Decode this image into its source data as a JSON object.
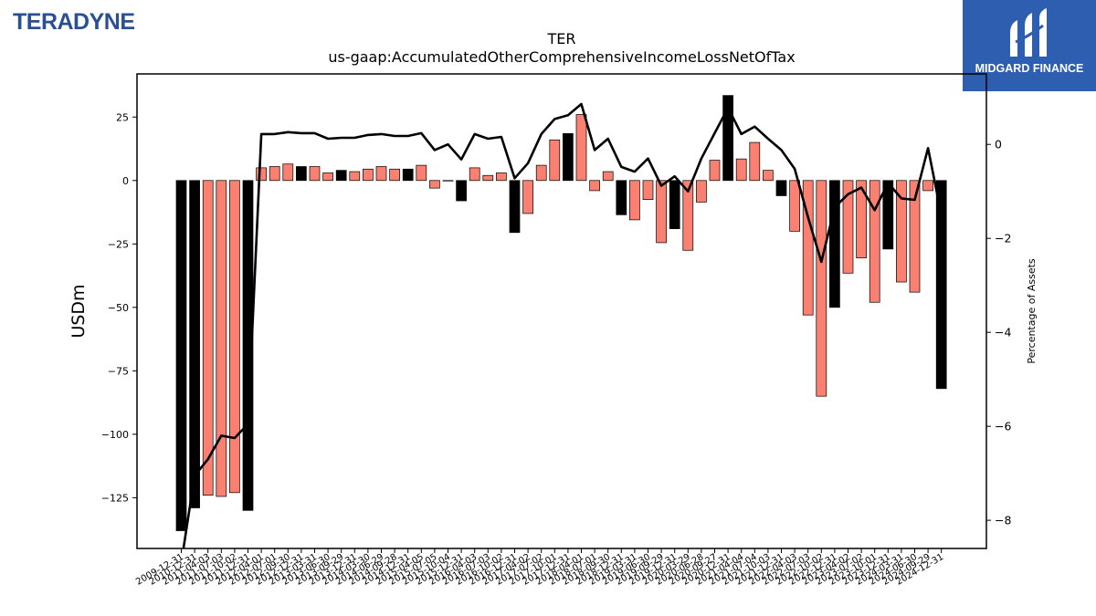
{
  "logo_left": {
    "text": "TERADYNE"
  },
  "logo_right": {
    "text": "MIDGARD FINANCE"
  },
  "chart_data": {
    "type": "bar",
    "title": "TER",
    "subtitle": "us-gaap:AccumulatedOtherComprehensiveIncomeLossNetOfTax",
    "ylabel": "USDm",
    "y2label": "Percentage of Assets",
    "ylim": [
      -145,
      42
    ],
    "y2lim": [
      -8.6,
      1.5
    ],
    "yticks": [
      25,
      0,
      -25,
      -50,
      -75,
      -100,
      -125
    ],
    "y2ticks": [
      0,
      -2,
      -4,
      -6,
      -8
    ],
    "categories": [
      "2009-12-31",
      "2010-12-31",
      "2011-04-03",
      "2011-07-03",
      "2011-10-02",
      "2011-12-31",
      "2012-04-01",
      "2012-07-01",
      "2012-09-30",
      "2012-12-31",
      "2013-03-31",
      "2013-06-30",
      "2013-09-29",
      "2013-12-31",
      "2014-03-30",
      "2014-06-29",
      "2014-09-28",
      "2014-12-31",
      "2015-04-05",
      "2015-07-05",
      "2015-10-04",
      "2015-12-31",
      "2016-04-03",
      "2016-07-03",
      "2016-10-02",
      "2016-12-31",
      "2017-04-02",
      "2017-07-02",
      "2017-10-01",
      "2017-12-31",
      "2018-04-01",
      "2018-07-01",
      "2018-09-30",
      "2018-12-31",
      "2019-03-31",
      "2019-06-30",
      "2019-09-29",
      "2019-12-31",
      "2020-03-29",
      "2020-06-28",
      "2020-09-27",
      "2020-12-31",
      "2021-04-04",
      "2021-07-04",
      "2021-10-03",
      "2021-12-31",
      "2022-04-03",
      "2022-07-03",
      "2022-10-02",
      "2022-12-31",
      "2023-04-02",
      "2023-07-02",
      "2023-10-01",
      "2023-12-31",
      "2024-03-31",
      "2024-06-30",
      "2024-09-29",
      "2024-12-31"
    ],
    "values": [
      -138,
      -129,
      -124,
      -124.5,
      -123,
      -130,
      5,
      5.5,
      6.5,
      5.5,
      5.5,
      3,
      4,
      3.5,
      4.5,
      5.5,
      4.5,
      4.5,
      6,
      -3,
      0,
      -8,
      5,
      2,
      3,
      -20.5,
      -13,
      6,
      16,
      18.5,
      26,
      -4,
      3.5,
      -13.5,
      -15.5,
      -7.5,
      -24.5,
      -19,
      -27.5,
      -8.5,
      8,
      33.5,
      8.5,
      15,
      4,
      -6,
      -20,
      -53,
      -85,
      -50,
      -36.5,
      -30.5,
      -48,
      -27,
      -40,
      -44,
      -4,
      -82
    ],
    "highlight": [
      true,
      true,
      false,
      false,
      false,
      true,
      false,
      false,
      false,
      true,
      false,
      false,
      true,
      false,
      false,
      false,
      false,
      true,
      false,
      false,
      false,
      true,
      false,
      false,
      false,
      true,
      false,
      false,
      false,
      true,
      false,
      false,
      false,
      true,
      false,
      false,
      false,
      true,
      false,
      false,
      false,
      true,
      false,
      false,
      false,
      true,
      false,
      false,
      false,
      true,
      false,
      false,
      false,
      true,
      false,
      false,
      false,
      true
    ],
    "pct_assets": [
      -8.9,
      -7.05,
      -6.7,
      -6.2,
      -6.25,
      -5.95,
      0.22,
      0.22,
      0.26,
      0.24,
      0.24,
      0.12,
      0.14,
      0.14,
      0.2,
      0.22,
      0.18,
      0.18,
      0.24,
      -0.12,
      0.0,
      -0.32,
      0.22,
      0.12,
      0.16,
      -0.72,
      -0.4,
      0.22,
      0.54,
      0.62,
      0.86,
      -0.12,
      0.12,
      -0.48,
      -0.58,
      -0.3,
      -0.88,
      -0.68,
      -1.0,
      -0.3,
      0.24,
      0.78,
      0.22,
      0.38,
      0.12,
      -0.12,
      -0.52,
      -1.55,
      -2.5,
      -1.34,
      -1.06,
      -0.92,
      -1.4,
      -0.82,
      -1.15,
      -1.18,
      -0.08,
      -1.5
    ],
    "colors": {
      "bar": "#fa8072",
      "bar_highlight": "#000000",
      "line": "#000000"
    },
    "legend": "none",
    "grid": false
  }
}
